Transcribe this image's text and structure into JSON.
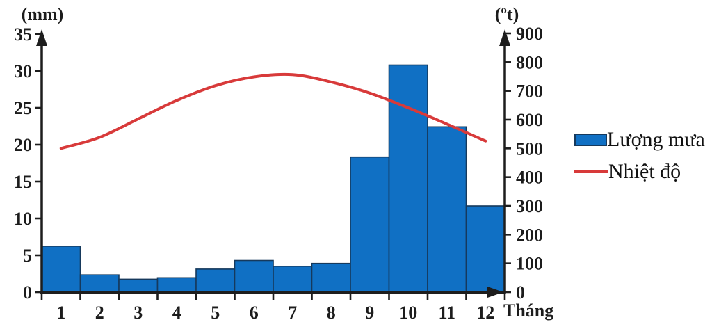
{
  "chart_data": {
    "type": "bar+line combo (climate chart)",
    "title": "",
    "categories": [
      "1",
      "2",
      "3",
      "4",
      "5",
      "6",
      "7",
      "8",
      "9",
      "10",
      "11",
      "12"
    ],
    "x_axis_label": "Tháng",
    "grid": false,
    "legend_position": "right-middle",
    "axes": {
      "left": {
        "title": "(mm)",
        "min": 0,
        "max": 35,
        "step": 5,
        "ticks": [
          0,
          5,
          10,
          15,
          20,
          25,
          30,
          35
        ]
      },
      "right": {
        "title": "(ºt)",
        "min": 0,
        "max": 900,
        "step": 100,
        "ticks": [
          0,
          100,
          200,
          300,
          400,
          500,
          600,
          700,
          800,
          900
        ]
      }
    },
    "series": [
      {
        "name": "Lượng mưa",
        "type": "bar",
        "axis": "right",
        "values": [
          160,
          60,
          45,
          50,
          80,
          110,
          90,
          100,
          470,
          790,
          575,
          300
        ]
      },
      {
        "name": "Nhiệt độ",
        "type": "line",
        "axis": "left",
        "values": [
          19.5,
          21,
          23.5,
          26,
          28,
          29.2,
          29.5,
          28.5,
          27,
          25,
          22.8,
          20.5
        ]
      }
    ]
  },
  "colors": {
    "bar_fill": "#1070c4",
    "bar_border": "#16395c",
    "line": "#d83a3a",
    "axis": "#1d1d1d",
    "text": "#1c1c1c",
    "background": "#ffffff"
  }
}
